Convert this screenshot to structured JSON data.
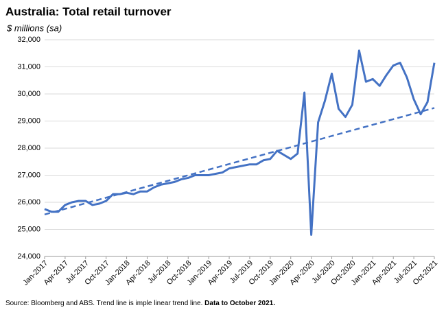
{
  "chart_data": {
    "type": "line",
    "title": "Australia: Total retail turnover",
    "subtitle": "$ millions (sa)",
    "source": "Source: Bloomberg and ABS.  Trend line is imple linear trend line.",
    "note": "Data to October 2021.",
    "categories": [
      "Jan-2017",
      null,
      null,
      "Apr-2017",
      null,
      null,
      "Jul-2017",
      null,
      null,
      "Oct-2017",
      null,
      null,
      "Jan-2018",
      null,
      null,
      "Apr-2018",
      null,
      null,
      "Jul-2018",
      null,
      null,
      "Oct-2018",
      null,
      null,
      "Jan-2019",
      null,
      null,
      "Apr-2019",
      null,
      null,
      "Jul-2019",
      null,
      null,
      "Oct-2019",
      null,
      null,
      "Jan-2020",
      null,
      null,
      "Apr-2020",
      null,
      null,
      "Jul-2020",
      null,
      null,
      "Oct-2020",
      null,
      null,
      "Jan-2021",
      null,
      null,
      "Apr-2021",
      null,
      null,
      "Jul-2021",
      null,
      null,
      "Oct-2021"
    ],
    "series": [
      {
        "color": "#4472c4",
        "dashed": false,
        "values": [
          25750,
          25650,
          25650,
          25900,
          26000,
          26050,
          26050,
          25900,
          25950,
          26050,
          26300,
          26300,
          26350,
          26300,
          26400,
          26400,
          26550,
          26650,
          26700,
          26750,
          26850,
          26900,
          27000,
          27000,
          27000,
          27050,
          27100,
          27250,
          27300,
          27350,
          27400,
          27400,
          27550,
          27600,
          27900,
          27750,
          27600,
          27800,
          30050,
          24800,
          28950,
          29750,
          30750,
          29450,
          29150,
          29600,
          31600,
          30450,
          30550,
          30300,
          30700,
          31050,
          31150,
          30600,
          29800,
          29250,
          29700,
          31150
        ]
      },
      {
        "color": "#4472c4",
        "dashed": true,
        "values": [
          25550,
          25619,
          25688,
          25757,
          25826,
          25895,
          25964,
          26033,
          26102,
          26171,
          26240,
          26309,
          26378,
          26447,
          26516,
          26585,
          26654,
          26723,
          26792,
          26861,
          26930,
          26999,
          27068,
          27137,
          27206,
          27275,
          27344,
          27413,
          27482,
          27551,
          27620,
          27689,
          27758,
          27827,
          27896,
          27965,
          28034,
          28103,
          28172,
          28241,
          28310,
          28379,
          28448,
          28517,
          28586,
          28655,
          28724,
          28793,
          28862,
          28931,
          29000,
          29069,
          29138,
          29207,
          29276,
          29345,
          29414,
          29483
        ]
      }
    ],
    "ylim": [
      24000,
      32000
    ],
    "yticks": [
      {
        "value": 24000,
        "label": "24,000"
      },
      {
        "value": 25000,
        "label": "25,000"
      },
      {
        "value": 26000,
        "label": "26,000"
      },
      {
        "value": 27000,
        "label": "27,000"
      },
      {
        "value": 28000,
        "label": "28,000"
      },
      {
        "value": 29000,
        "label": "29,000"
      },
      {
        "value": 30000,
        "label": "30,000"
      },
      {
        "value": 31000,
        "label": "31,000"
      },
      {
        "value": 32000,
        "label": "32,000"
      }
    ],
    "grid": true
  }
}
